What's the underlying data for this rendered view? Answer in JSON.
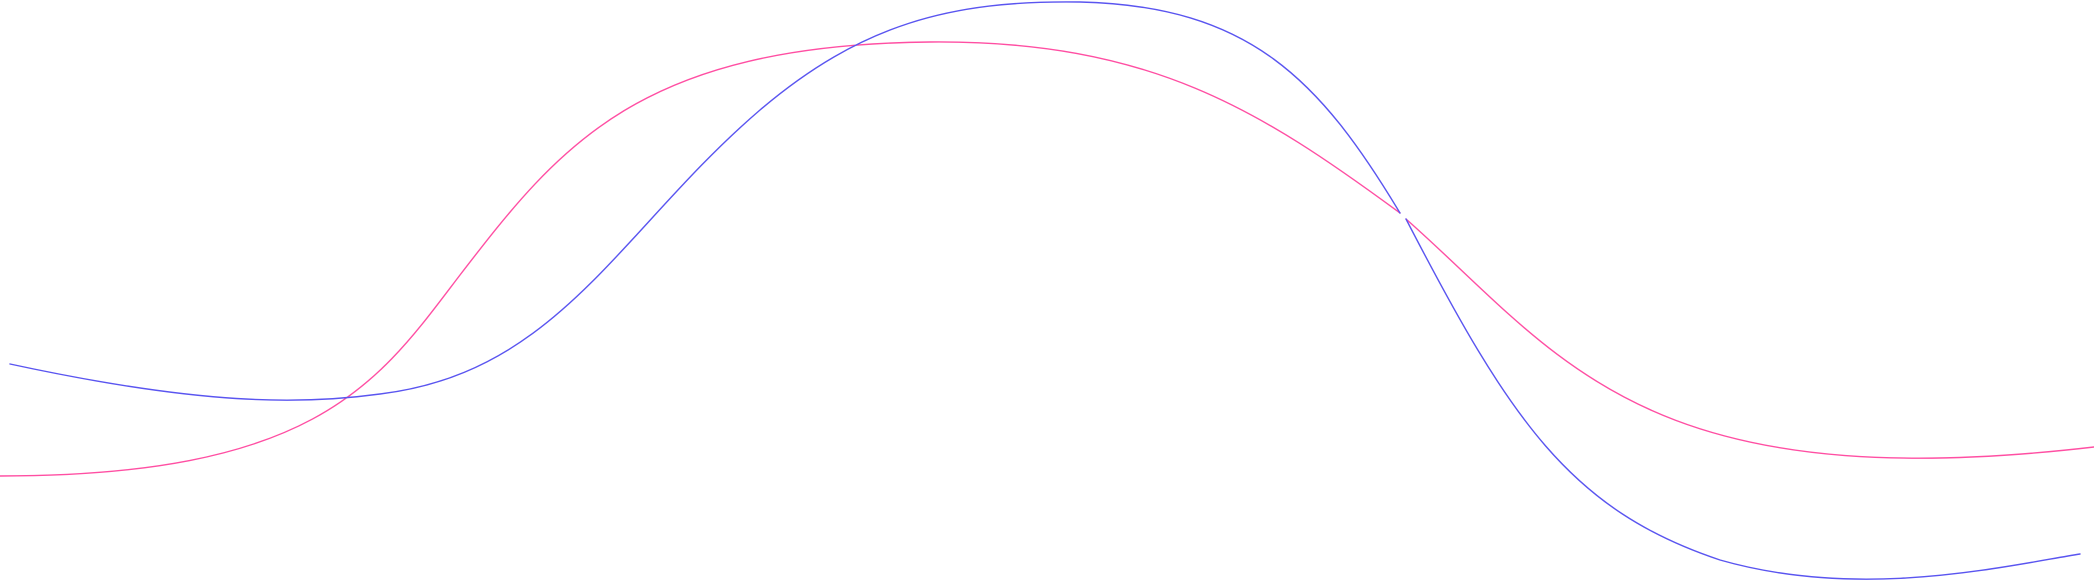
{
  "curves": {
    "pink": {
      "color": "#ff4fa3",
      "name": "pink-wave"
    },
    "blue": {
      "color": "#5a55f0",
      "name": "blue-wave"
    }
  },
  "background": "#ffffff"
}
